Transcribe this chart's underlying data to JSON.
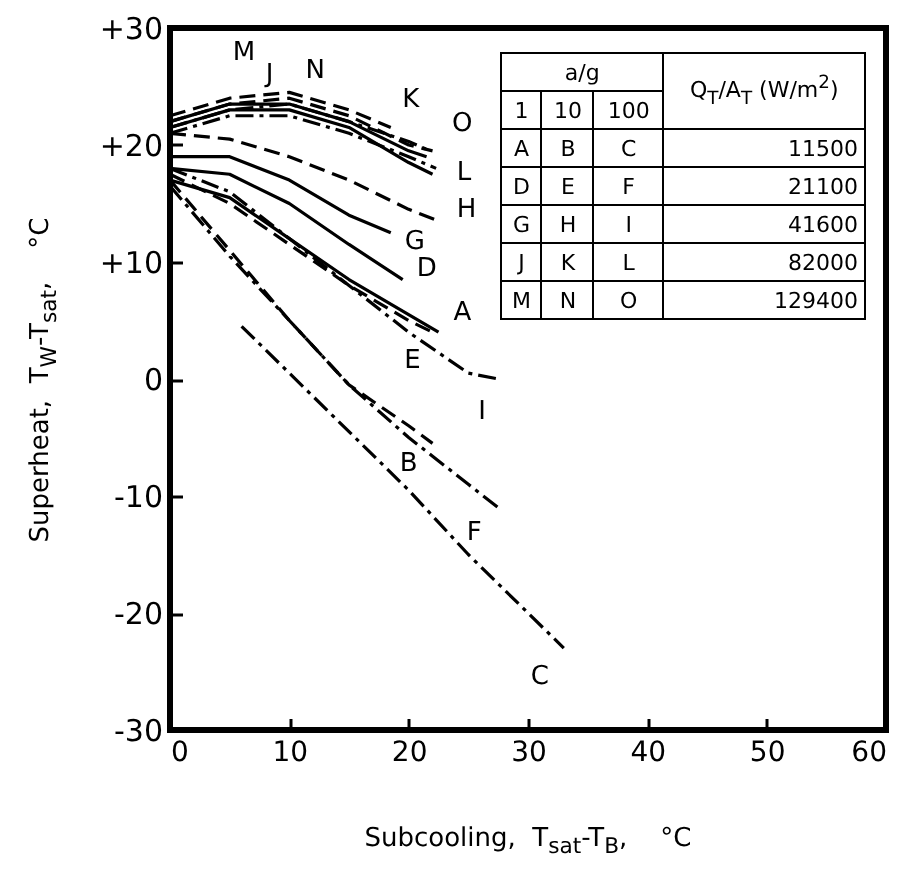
{
  "chart_data": {
    "type": "line",
    "xlabel": "Subcooling,  T$_{sat}$-T$_{B}$,    °C",
    "ylabel": "Superheat,  T$_{W}$-T$_{sat}$,    °C",
    "xlim": [
      0,
      60
    ],
    "xticks": [
      0,
      10,
      20,
      30,
      40,
      50,
      60
    ],
    "ylim": [
      -30,
      30
    ],
    "yticks": [
      {
        "value": -30,
        "label": "-30"
      },
      {
        "value": -20,
        "label": "-20"
      },
      {
        "value": -10,
        "label": "-10"
      },
      {
        "value": 0,
        "label": "0"
      },
      {
        "value": 10,
        "label": "+10"
      },
      {
        "value": 20,
        "label": "+20"
      },
      {
        "value": 30,
        "label": "+30"
      }
    ],
    "grid": false,
    "marker": "none",
    "series": [
      {
        "color": "#000000",
        "line_style": "solid",
        "x": [
          0,
          5,
          10,
          15,
          20,
          22.5
        ],
        "values": [
          17,
          15.5,
          12,
          8.5,
          5.5,
          4
        ]
      },
      {
        "color": "#000000",
        "line_style": "dashed",
        "x": [
          0,
          5,
          10,
          15,
          20,
          22
        ],
        "values": [
          17,
          11,
          5,
          -0.5,
          -4,
          -5.5
        ]
      },
      {
        "color": "#000000",
        "line_style": "dashdot",
        "x": [
          6,
          10,
          15,
          20,
          25,
          30,
          33
        ],
        "values": [
          4.5,
          0.5,
          -4.5,
          -9.5,
          -15,
          -20,
          -23
        ]
      },
      {
        "color": "#000000",
        "line_style": "solid",
        "x": [
          0,
          5,
          10,
          15,
          19.5
        ],
        "values": [
          18,
          17.5,
          15,
          11.5,
          8.5
        ]
      },
      {
        "color": "#000000",
        "line_style": "dashed",
        "x": [
          0,
          5,
          10,
          15,
          20,
          22
        ],
        "values": [
          17.5,
          15,
          11.5,
          8,
          5,
          4
        ]
      },
      {
        "color": "#000000",
        "line_style": "dashdot",
        "x": [
          0,
          5,
          10,
          15,
          20,
          25,
          27.5
        ],
        "values": [
          16.5,
          10.5,
          5,
          -0.5,
          -5,
          -9,
          -11
        ]
      },
      {
        "color": "#000000",
        "line_style": "solid",
        "x": [
          0,
          5,
          10,
          15,
          18.5
        ],
        "values": [
          19,
          19,
          17,
          14,
          12.5
        ]
      },
      {
        "color": "#000000",
        "line_style": "dashed",
        "x": [
          0,
          5,
          10,
          15,
          20,
          22.5
        ],
        "values": [
          21,
          20.5,
          19,
          17,
          14.5,
          13.5
        ]
      },
      {
        "color": "#000000",
        "line_style": "dashdot",
        "x": [
          0,
          5,
          10,
          15,
          20,
          25,
          27.5
        ],
        "values": [
          18,
          16,
          12,
          8,
          4,
          0.5,
          0
        ]
      },
      {
        "color": "#000000",
        "line_style": "solid",
        "x": [
          0,
          5,
          10,
          15,
          20,
          22
        ],
        "values": [
          21.5,
          23,
          23,
          21.5,
          18.5,
          17.5
        ]
      },
      {
        "color": "#000000",
        "line_style": "dashed",
        "x": [
          0,
          5,
          10,
          15,
          18.5
        ],
        "values": [
          22.5,
          24,
          24.5,
          23,
          21.5
        ]
      },
      {
        "color": "#000000",
        "line_style": "dashdot",
        "x": [
          0,
          5,
          10,
          15,
          20,
          22.3
        ],
        "values": [
          21,
          22.5,
          22.5,
          21,
          19,
          18
        ]
      },
      {
        "color": "#000000",
        "line_style": "solid",
        "x": [
          0,
          5,
          10,
          15,
          20,
          21.5
        ],
        "values": [
          22,
          23.5,
          23.5,
          22,
          19.5,
          19
        ]
      },
      {
        "color": "#000000",
        "line_style": "dashed",
        "x": [
          0,
          5,
          10,
          15,
          20,
          22
        ],
        "values": [
          22,
          23.5,
          24,
          22.5,
          20,
          19.5
        ]
      },
      {
        "color": "#000000",
        "line_style": "dashdot",
        "x": [
          0,
          5,
          10,
          15,
          20,
          21.8
        ],
        "values": [
          21.5,
          23,
          23.5,
          22,
          20.3,
          19.5
        ]
      }
    ],
    "annotations": [
      {
        "text": "A",
        "x": 22.5,
        "y": 4
      },
      {
        "text": "B",
        "x": 22,
        "y": -5.5
      },
      {
        "text": "C",
        "x": 33,
        "y": -23
      },
      {
        "text": "D",
        "x": 19.5,
        "y": 8.5
      },
      {
        "text": "E",
        "x": 22,
        "y": 4
      },
      {
        "text": "F",
        "x": 27.5,
        "y": -11
      },
      {
        "text": "G",
        "x": 18.5,
        "y": 12.5
      },
      {
        "text": "H",
        "x": 22.5,
        "y": 13.5
      },
      {
        "text": "I",
        "x": 27.5,
        "y": 0
      },
      {
        "text": "J",
        "x": 5,
        "y": 23
      },
      {
        "text": "K",
        "x": 18.5,
        "y": 21.5
      },
      {
        "text": "L",
        "x": 22.3,
        "y": 18
      },
      {
        "text": "M",
        "x": 1.5,
        "y": 22.5
      },
      {
        "text": "N",
        "x": 10,
        "y": 24
      },
      {
        "text": "O",
        "x": 21.8,
        "y": 19.5
      },
      "a/g",
      "Q$_{T}$/A$_{T}$ (W/m$^{2}$)",
      "1",
      "10",
      "100",
      "A",
      "B",
      "C",
      "11500",
      "D",
      "E",
      "F",
      "21100",
      "G",
      "H",
      "I",
      "41600",
      "J",
      "K",
      "L",
      "82000",
      "M",
      "N",
      "O",
      "129400"
    ]
  }
}
